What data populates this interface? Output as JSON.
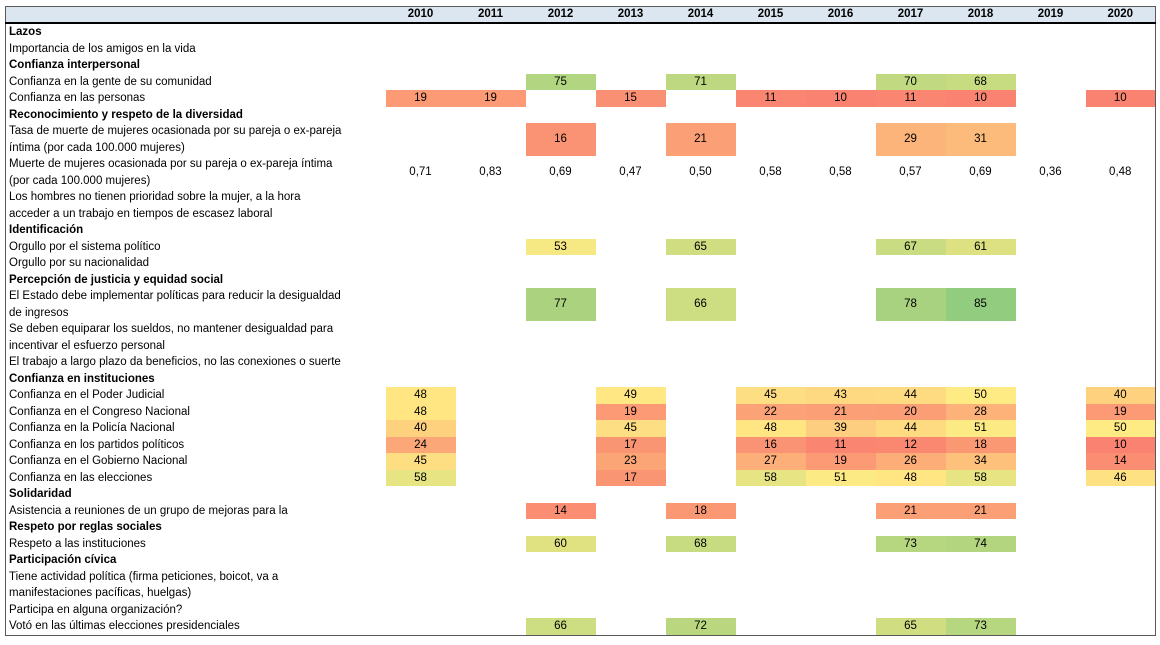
{
  "chart_data": {
    "type": "heatmap",
    "title": "",
    "corner_label": "",
    "columns": [
      "2010",
      "2011",
      "2012",
      "2013",
      "2014",
      "2015",
      "2016",
      "2017",
      "2018",
      "2019",
      "2020"
    ],
    "rows": [
      {
        "kind": "section",
        "lines": [
          "Lazos"
        ],
        "values": {}
      },
      {
        "kind": "indicator",
        "lines": [
          "Importancia de los amigos en la vida"
        ],
        "values": {}
      },
      {
        "kind": "section",
        "lines": [
          "Confianza interpersonal"
        ],
        "values": {}
      },
      {
        "kind": "indicator",
        "lines": [
          "Confianza en la gente de su comunidad"
        ],
        "values": {
          "2012": 75,
          "2014": 71,
          "2017": 70,
          "2018": 68
        }
      },
      {
        "kind": "indicator",
        "lines": [
          "Confianza en las personas"
        ],
        "values": {
          "2010": 19,
          "2011": 19,
          "2013": 15,
          "2015": 11,
          "2016": 10,
          "2017": 11,
          "2018": 10,
          "2020": 10
        }
      },
      {
        "kind": "section",
        "lines": [
          "Reconocimiento y respeto de la diversidad"
        ],
        "values": {}
      },
      {
        "kind": "indicator",
        "lines": [
          "Tasa de muerte de mujeres ocasionada por su pareja o ex-pareja",
          "íntima (por cada 100.000 mujeres)"
        ],
        "values": {
          "2012": 16,
          "2014": 21,
          "2017": 29,
          "2018": 31
        }
      },
      {
        "kind": "indicator",
        "plain": true,
        "lines": [
          "Muerte de mujeres ocasionada por su pareja o ex-pareja íntima",
          "(por cada 100.000 mujeres)"
        ],
        "values": {
          "2010": "0,71",
          "2011": "0,83",
          "2012": "0,69",
          "2013": "0,47",
          "2014": "0,50",
          "2015": "0,58",
          "2016": "0,58",
          "2017": "0,57",
          "2018": "0,69",
          "2019": "0,36",
          "2020": "0,48"
        }
      },
      {
        "kind": "indicator",
        "lines": [
          "Los hombres no tienen prioridad sobre la mujer, a la hora",
          "acceder a un trabajo en tiempos de escasez laboral"
        ],
        "values": {}
      },
      {
        "kind": "section",
        "lines": [
          "Identificación"
        ],
        "values": {}
      },
      {
        "kind": "indicator",
        "lines": [
          "Orgullo por el sistema político"
        ],
        "values": {
          "2012": 53,
          "2014": 65,
          "2017": 67,
          "2018": 61
        }
      },
      {
        "kind": "indicator",
        "lines": [
          "Orgullo por su nacionalidad"
        ],
        "values": {}
      },
      {
        "kind": "section",
        "lines": [
          "Percepción de justicia y equidad social"
        ],
        "values": {}
      },
      {
        "kind": "indicator",
        "lines": [
          "El Estado debe implementar políticas para reducir la desigualdad",
          "de ingresos"
        ],
        "values": {
          "2012": 77,
          "2014": 66,
          "2017": 78,
          "2018": 85
        }
      },
      {
        "kind": "indicator",
        "lines": [
          "Se deben equiparar los sueldos, no mantener desigualdad para",
          "incentivar el esfuerzo personal"
        ],
        "values": {}
      },
      {
        "kind": "indicator",
        "lines": [
          "El trabajo a largo plazo da beneficios, no las conexiones o suerte"
        ],
        "values": {}
      },
      {
        "kind": "section",
        "lines": [
          "Confianza en instituciones"
        ],
        "values": {}
      },
      {
        "kind": "indicator",
        "lines": [
          "Confianza en el Poder Judicial"
        ],
        "values": {
          "2010": 48,
          "2013": 49,
          "2015": 45,
          "2016": 43,
          "2017": 44,
          "2018": 50,
          "2020": 40
        }
      },
      {
        "kind": "indicator",
        "lines": [
          "Confianza en el Congreso Nacional"
        ],
        "values": {
          "2010": 48,
          "2013": 19,
          "2015": 22,
          "2016": 21,
          "2017": 20,
          "2018": 28,
          "2020": 19
        }
      },
      {
        "kind": "indicator",
        "lines": [
          "Confianza en la Policía Nacional"
        ],
        "values": {
          "2010": 40,
          "2013": 45,
          "2015": 48,
          "2016": 39,
          "2017": 44,
          "2018": 51,
          "2020": 50
        }
      },
      {
        "kind": "indicator",
        "lines": [
          "Confianza en los partidos políticos"
        ],
        "values": {
          "2010": 24,
          "2013": 17,
          "2015": 16,
          "2016": 11,
          "2017": 12,
          "2018": 18,
          "2020": 10
        }
      },
      {
        "kind": "indicator",
        "lines": [
          "Confianza en el Gobierno Nacional"
        ],
        "values": {
          "2010": 45,
          "2013": 23,
          "2015": 27,
          "2016": 19,
          "2017": 26,
          "2018": 34,
          "2020": 14
        }
      },
      {
        "kind": "indicator",
        "lines": [
          "Confianza en las elecciones"
        ],
        "values": {
          "2010": 58,
          "2013": 17,
          "2015": 58,
          "2016": 51,
          "2017": 48,
          "2018": 58,
          "2020": 46
        }
      },
      {
        "kind": "section",
        "lines": [
          "Solidaridad"
        ],
        "values": {}
      },
      {
        "kind": "indicator",
        "lines": [
          "Asistencia a reuniones de un grupo de mejoras para la"
        ],
        "values": {
          "2012": 14,
          "2014": 18,
          "2017": 21,
          "2018": 21
        }
      },
      {
        "kind": "section",
        "lines": [
          "Respeto por reglas sociales"
        ],
        "values": {}
      },
      {
        "kind": "indicator",
        "lines": [
          "Respeto a las instituciones"
        ],
        "values": {
          "2012": 60,
          "2014": 68,
          "2017": 73,
          "2018": 74
        }
      },
      {
        "kind": "section",
        "lines": [
          "Participación cívica"
        ],
        "values": {}
      },
      {
        "kind": "indicator",
        "lines": [
          "Tiene actividad política (firma peticiones, boicot, va a",
          "manifestaciones pacíficas, huelgas)"
        ],
        "values": {}
      },
      {
        "kind": "indicator",
        "lines": [
          "Participa en alguna organización?"
        ],
        "values": {}
      },
      {
        "kind": "indicator",
        "lines": [
          "Votó en las últimas elecciones presidenciales"
        ],
        "values": {
          "2012": 66,
          "2014": 72,
          "2017": 65,
          "2018": 73
        }
      }
    ],
    "color_scale": {
      "min_value": 0,
      "min_color": "#F8696B",
      "mid_value": 50,
      "mid_color": "#FFEB84",
      "max_value": 100,
      "max_color": "#63BE7B"
    },
    "layout_hints": {
      "header_bg": "#DCE6F1",
      "border_color": "#595959",
      "header_rule_color": "#000000",
      "label_col_width": 380,
      "year_col_width": 70
    }
  }
}
